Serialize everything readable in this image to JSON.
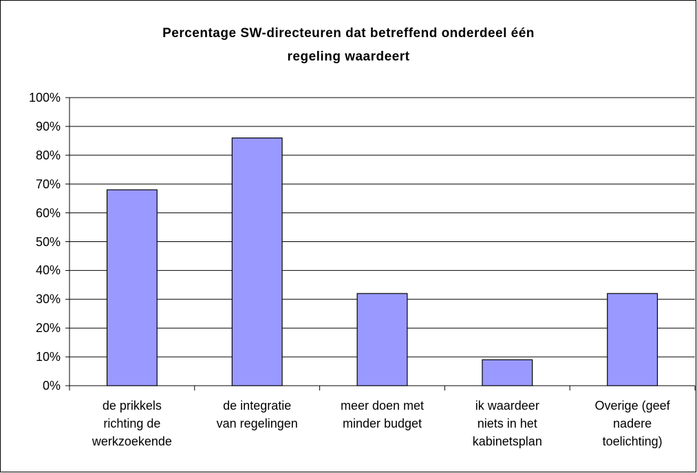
{
  "chart_data": {
    "type": "bar",
    "title": "Percentage SW-directeuren dat betreffend onderdeel één\nregeling waardeert",
    "categories": [
      "de prikkels\nrichting de\nwerkzoekende",
      "de integratie\nvan regelingen",
      "meer doen met\nminder budget",
      "ik waardeer\nniets in het\nkabinetsplan",
      "Overige (geef\nnadere\ntoelichting)"
    ],
    "values": [
      68,
      86,
      32,
      9,
      32
    ],
    "color": "#9999ff",
    "ylim": [
      0,
      100
    ],
    "yticks": [
      {
        "value": 0,
        "label": "0%"
      },
      {
        "value": 10,
        "label": "10%"
      },
      {
        "value": 20,
        "label": "20%"
      },
      {
        "value": 30,
        "label": "30%"
      },
      {
        "value": 40,
        "label": "40%"
      },
      {
        "value": 50,
        "label": "50%"
      },
      {
        "value": 60,
        "label": "60%"
      },
      {
        "value": 70,
        "label": "70%"
      },
      {
        "value": 80,
        "label": "80%"
      },
      {
        "value": 90,
        "label": "90%"
      },
      {
        "value": 100,
        "label": "100%"
      }
    ],
    "grid": true
  }
}
